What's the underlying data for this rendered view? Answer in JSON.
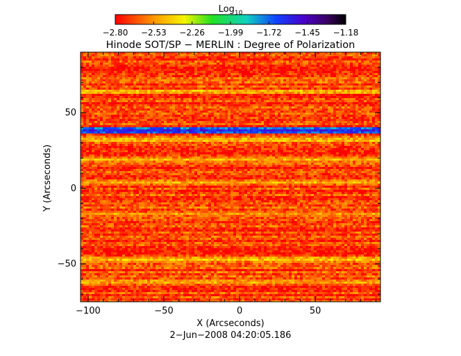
{
  "colorbar": {
    "label_main": "Log",
    "label_sub": "10",
    "ticks": [
      "−2.80",
      "−2.53",
      "−2.26",
      "−1.99",
      "−1.72",
      "−1.45",
      "−1.18"
    ],
    "range": [
      -2.8,
      -1.18
    ],
    "colormap": "rainbow (red → orange → yellow → green → cyan → blue → purple → black)"
  },
  "chart_data": {
    "type": "heatmap",
    "title": "Hinode SOT/SP − MERLIN : Degree of Polarization",
    "xlabel": "X (Arcseconds)",
    "ylabel": "Y (Arcseconds)",
    "xlim": [
      -105,
      93
    ],
    "ylim": [
      -75,
      90
    ],
    "x_ticks": [
      -100,
      -50,
      0,
      50
    ],
    "y_ticks": [
      -50,
      0,
      50
    ],
    "x_tick_labels": [
      "−100",
      "−50",
      "0",
      "50"
    ],
    "y_tick_labels": [
      "−50",
      "0",
      "50"
    ],
    "value_range": [
      -2.8,
      -1.18
    ],
    "background_level": -2.7,
    "bright_streaks": [
      {
        "y": 38,
        "x_range": [
          -105,
          93
        ],
        "peak_value": -1.55
      },
      {
        "y": 64,
        "x_range": [
          -105,
          93
        ],
        "peak_value": -2.4
      },
      {
        "y": 32,
        "x_range": [
          -105,
          93
        ],
        "peak_value": -2.4
      },
      {
        "y": 19,
        "x_range": [
          -105,
          93
        ],
        "peak_value": -2.45
      },
      {
        "y": 4,
        "x_range": [
          -105,
          93
        ],
        "peak_value": -2.45
      },
      {
        "y": -17,
        "x_range": [
          -105,
          93
        ],
        "peak_value": -2.5
      },
      {
        "y": -47,
        "x_range": [
          -105,
          93
        ],
        "peak_value": -2.4
      },
      {
        "y": -62,
        "x_range": [
          -105,
          93
        ],
        "peak_value": -2.45
      }
    ],
    "grid": false,
    "legend": "colorbar top"
  },
  "timestamp": "2−Jun−2008 04:20:05.186"
}
